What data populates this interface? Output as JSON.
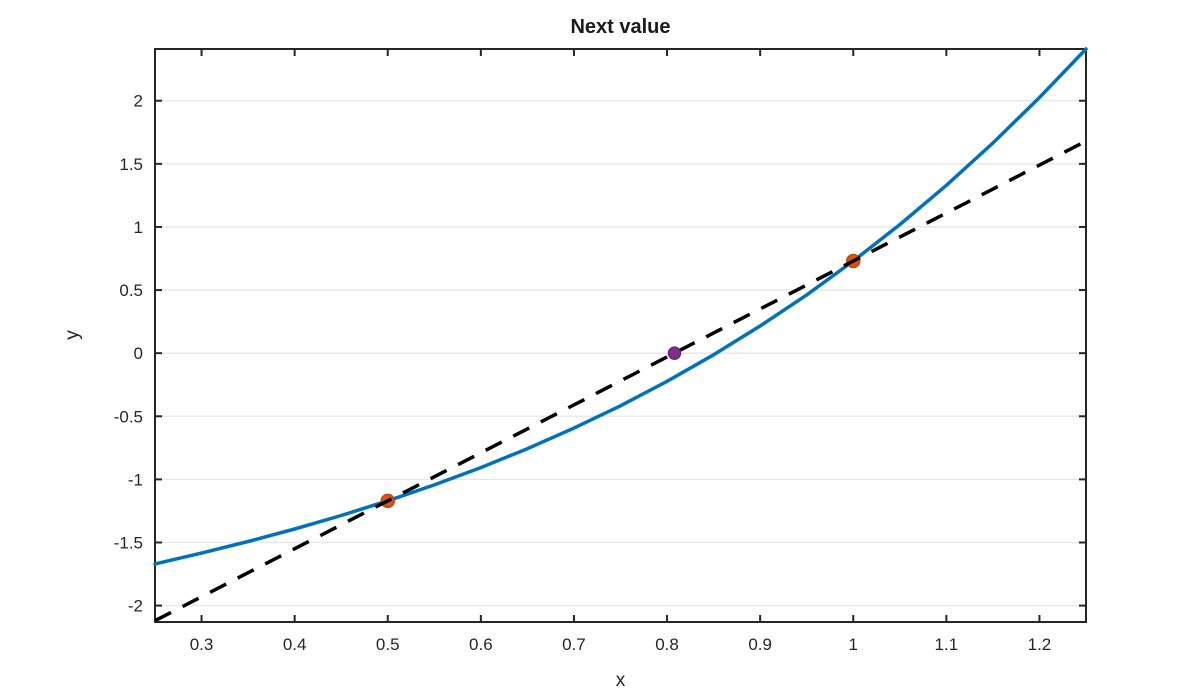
{
  "title": "Next value",
  "xlabel": "x",
  "ylabel": "y",
  "colors": {
    "background": "#ffffff",
    "curve": "#0072BD",
    "secant": "#000000",
    "bracket_marker_fill": "#D95319",
    "bracket_marker_edge": "#C1440E",
    "next_marker_fill": "#7E2F8E",
    "next_marker_edge": "#6B2478",
    "grid": "#E6E6E6",
    "frame": "#262626",
    "tick_label": "#262626",
    "title_color": "#1a1a1a"
  },
  "chart_data": {
    "type": "line",
    "title": "Next value",
    "xlabel": "x",
    "ylabel": "y",
    "xlim": [
      0.25,
      1.25
    ],
    "ylim": [
      -2.13,
      2.41
    ],
    "grid": "horizontal-only",
    "legend": "none",
    "xticks": [
      0.3,
      0.4,
      0.5,
      0.6,
      0.7,
      0.8,
      0.9,
      1.0,
      1.1,
      1.2
    ],
    "xtick_labels": [
      "0.3",
      "0.4",
      "0.5",
      "0.6",
      "0.7",
      "0.8",
      "0.9",
      "1",
      "1.1",
      "1.2"
    ],
    "yticks": [
      -2,
      -1.5,
      -1,
      -0.5,
      0,
      0.5,
      1,
      1.5,
      2
    ],
    "ytick_labels": [
      "-2",
      "-1.5",
      "-1",
      "-0.5",
      "0",
      "0.5",
      "1",
      "1.5",
      "2"
    ],
    "series": [
      {
        "name": "function-curve",
        "style": "solid",
        "color": "#0072BD",
        "line_width": 3.5,
        "x": [
          0.25,
          0.3,
          0.35,
          0.4,
          0.45,
          0.5,
          0.55,
          0.6,
          0.65,
          0.7,
          0.75,
          0.8,
          0.85,
          0.9,
          0.95,
          1.0,
          1.05,
          1.1,
          1.15,
          1.2,
          1.25
        ],
        "y": [
          -1.67,
          -1.584,
          -1.492,
          -1.393,
          -1.286,
          -1.17,
          -1.044,
          -0.907,
          -0.757,
          -0.594,
          -0.417,
          -0.223,
          -0.013,
          0.215,
          0.462,
          0.73,
          1.019,
          1.33,
          1.665,
          2.025,
          2.41
        ]
      },
      {
        "name": "secant-line",
        "style": "dashed",
        "color": "#000000",
        "line_width": 3.5,
        "x": [
          0.25,
          1.25
        ],
        "y": [
          -2.12,
          1.68
        ]
      }
    ],
    "points": [
      {
        "name": "iterate-x0",
        "x": 0.5,
        "y": -1.17,
        "fill": "#D95319",
        "edge": "#C1440E",
        "r": 6.5
      },
      {
        "name": "iterate-x1",
        "x": 1.0,
        "y": 0.73,
        "fill": "#D95319",
        "edge": "#C1440E",
        "r": 6.5
      },
      {
        "name": "next-value-point",
        "x": 0.808,
        "y": 0.0,
        "fill": "#7E2F8E",
        "edge": "#6B2478",
        "r": 6.0
      }
    ]
  }
}
